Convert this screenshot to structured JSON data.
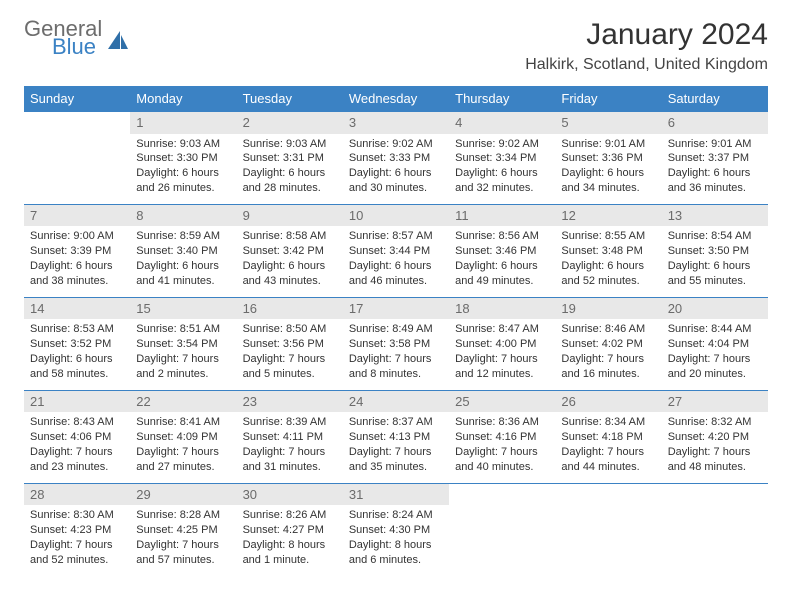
{
  "logo": {
    "general": "General",
    "blue": "Blue"
  },
  "title": "January 2024",
  "location": "Halkirk, Scotland, United Kingdom",
  "colors": {
    "header_bg": "#3b82c4",
    "header_fg": "#ffffff",
    "daynum_bg": "#e8e8e8",
    "daynum_fg": "#6b6b6b",
    "text": "#333333",
    "row_border": "#3b82c4",
    "logo_gray": "#6d6d6d",
    "logo_blue": "#3b82c4"
  },
  "days_of_week": [
    "Sunday",
    "Monday",
    "Tuesday",
    "Wednesday",
    "Thursday",
    "Friday",
    "Saturday"
  ],
  "start_offset": 1,
  "cells": [
    {
      "n": "1",
      "sunrise": "9:03 AM",
      "sunset": "3:30 PM",
      "daylight": "6 hours and 26 minutes."
    },
    {
      "n": "2",
      "sunrise": "9:03 AM",
      "sunset": "3:31 PM",
      "daylight": "6 hours and 28 minutes."
    },
    {
      "n": "3",
      "sunrise": "9:02 AM",
      "sunset": "3:33 PM",
      "daylight": "6 hours and 30 minutes."
    },
    {
      "n": "4",
      "sunrise": "9:02 AM",
      "sunset": "3:34 PM",
      "daylight": "6 hours and 32 minutes."
    },
    {
      "n": "5",
      "sunrise": "9:01 AM",
      "sunset": "3:36 PM",
      "daylight": "6 hours and 34 minutes."
    },
    {
      "n": "6",
      "sunrise": "9:01 AM",
      "sunset": "3:37 PM",
      "daylight": "6 hours and 36 minutes."
    },
    {
      "n": "7",
      "sunrise": "9:00 AM",
      "sunset": "3:39 PM",
      "daylight": "6 hours and 38 minutes."
    },
    {
      "n": "8",
      "sunrise": "8:59 AM",
      "sunset": "3:40 PM",
      "daylight": "6 hours and 41 minutes."
    },
    {
      "n": "9",
      "sunrise": "8:58 AM",
      "sunset": "3:42 PM",
      "daylight": "6 hours and 43 minutes."
    },
    {
      "n": "10",
      "sunrise": "8:57 AM",
      "sunset": "3:44 PM",
      "daylight": "6 hours and 46 minutes."
    },
    {
      "n": "11",
      "sunrise": "8:56 AM",
      "sunset": "3:46 PM",
      "daylight": "6 hours and 49 minutes."
    },
    {
      "n": "12",
      "sunrise": "8:55 AM",
      "sunset": "3:48 PM",
      "daylight": "6 hours and 52 minutes."
    },
    {
      "n": "13",
      "sunrise": "8:54 AM",
      "sunset": "3:50 PM",
      "daylight": "6 hours and 55 minutes."
    },
    {
      "n": "14",
      "sunrise": "8:53 AM",
      "sunset": "3:52 PM",
      "daylight": "6 hours and 58 minutes."
    },
    {
      "n": "15",
      "sunrise": "8:51 AM",
      "sunset": "3:54 PM",
      "daylight": "7 hours and 2 minutes."
    },
    {
      "n": "16",
      "sunrise": "8:50 AM",
      "sunset": "3:56 PM",
      "daylight": "7 hours and 5 minutes."
    },
    {
      "n": "17",
      "sunrise": "8:49 AM",
      "sunset": "3:58 PM",
      "daylight": "7 hours and 8 minutes."
    },
    {
      "n": "18",
      "sunrise": "8:47 AM",
      "sunset": "4:00 PM",
      "daylight": "7 hours and 12 minutes."
    },
    {
      "n": "19",
      "sunrise": "8:46 AM",
      "sunset": "4:02 PM",
      "daylight": "7 hours and 16 minutes."
    },
    {
      "n": "20",
      "sunrise": "8:44 AM",
      "sunset": "4:04 PM",
      "daylight": "7 hours and 20 minutes."
    },
    {
      "n": "21",
      "sunrise": "8:43 AM",
      "sunset": "4:06 PM",
      "daylight": "7 hours and 23 minutes."
    },
    {
      "n": "22",
      "sunrise": "8:41 AM",
      "sunset": "4:09 PM",
      "daylight": "7 hours and 27 minutes."
    },
    {
      "n": "23",
      "sunrise": "8:39 AM",
      "sunset": "4:11 PM",
      "daylight": "7 hours and 31 minutes."
    },
    {
      "n": "24",
      "sunrise": "8:37 AM",
      "sunset": "4:13 PM",
      "daylight": "7 hours and 35 minutes."
    },
    {
      "n": "25",
      "sunrise": "8:36 AM",
      "sunset": "4:16 PM",
      "daylight": "7 hours and 40 minutes."
    },
    {
      "n": "26",
      "sunrise": "8:34 AM",
      "sunset": "4:18 PM",
      "daylight": "7 hours and 44 minutes."
    },
    {
      "n": "27",
      "sunrise": "8:32 AM",
      "sunset": "4:20 PM",
      "daylight": "7 hours and 48 minutes."
    },
    {
      "n": "28",
      "sunrise": "8:30 AM",
      "sunset": "4:23 PM",
      "daylight": "7 hours and 52 minutes."
    },
    {
      "n": "29",
      "sunrise": "8:28 AM",
      "sunset": "4:25 PM",
      "daylight": "7 hours and 57 minutes."
    },
    {
      "n": "30",
      "sunrise": "8:26 AM",
      "sunset": "4:27 PM",
      "daylight": "8 hours and 1 minute."
    },
    {
      "n": "31",
      "sunrise": "8:24 AM",
      "sunset": "4:30 PM",
      "daylight": "8 hours and 6 minutes."
    }
  ],
  "labels": {
    "sunrise": "Sunrise: ",
    "sunset": "Sunset: ",
    "daylight": "Daylight: "
  }
}
